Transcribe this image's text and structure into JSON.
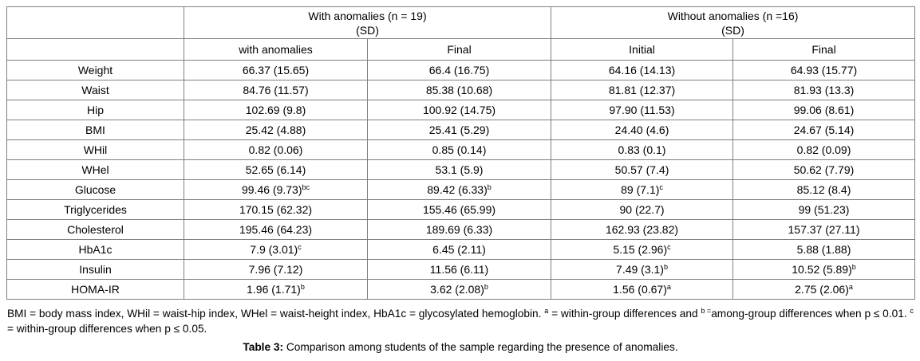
{
  "table": {
    "group_headers": [
      {
        "label": "With anomalies (n = 19)",
        "sub": "(SD)"
      },
      {
        "label": "Without anomalies (n =16)",
        "sub": "(SD)"
      }
    ],
    "sub_headers": [
      "with anomalies",
      "Final",
      "Initial",
      "Final"
    ],
    "rows": [
      {
        "label": "Weight",
        "cells": [
          {
            "v": "66.37 (15.65)",
            "s": ""
          },
          {
            "v": "66.4 (16.75)",
            "s": ""
          },
          {
            "v": "64.16 (14.13)",
            "s": ""
          },
          {
            "v": "64.93 (15.77)",
            "s": ""
          }
        ]
      },
      {
        "label": "Waist",
        "cells": [
          {
            "v": "84.76 (11.57)",
            "s": ""
          },
          {
            "v": "85.38 (10.68)",
            "s": ""
          },
          {
            "v": "81.81 (12.37)",
            "s": ""
          },
          {
            "v": "81.93 (13.3)",
            "s": ""
          }
        ]
      },
      {
        "label": "Hip",
        "cells": [
          {
            "v": "102.69 (9.8)",
            "s": ""
          },
          {
            "v": "100.92 (14.75)",
            "s": ""
          },
          {
            "v": "97.90 (11.53)",
            "s": ""
          },
          {
            "v": "99.06 (8.61)",
            "s": ""
          }
        ]
      },
      {
        "label": "BMI",
        "cells": [
          {
            "v": "25.42 (4.88)",
            "s": ""
          },
          {
            "v": "25.41 (5.29)",
            "s": ""
          },
          {
            "v": "24.40 (4.6)",
            "s": ""
          },
          {
            "v": "24.67 (5.14)",
            "s": ""
          }
        ]
      },
      {
        "label": "WHil",
        "cells": [
          {
            "v": "0.82 (0.06)",
            "s": ""
          },
          {
            "v": "0.85 (0.14)",
            "s": ""
          },
          {
            "v": "0.83 (0.1)",
            "s": ""
          },
          {
            "v": "0.82 (0.09)",
            "s": ""
          }
        ]
      },
      {
        "label": "WHel",
        "cells": [
          {
            "v": "52.65 (6.14)",
            "s": ""
          },
          {
            "v": "53.1 (5.9)",
            "s": ""
          },
          {
            "v": "50.57 (7.4)",
            "s": ""
          },
          {
            "v": "50.62 (7.79)",
            "s": ""
          }
        ]
      },
      {
        "label": "Glucose",
        "cells": [
          {
            "v": "99.46 (9.73)",
            "s": "bc"
          },
          {
            "v": "89.42 (6.33)",
            "s": "b"
          },
          {
            "v": "89 (7.1)",
            "s": "c"
          },
          {
            "v": "85.12 (8.4)",
            "s": ""
          }
        ]
      },
      {
        "label": "Triglycerides",
        "cells": [
          {
            "v": "170.15 (62.32)",
            "s": ""
          },
          {
            "v": "155.46 (65.99)",
            "s": ""
          },
          {
            "v": "90 (22.7)",
            "s": ""
          },
          {
            "v": "99 (51.23)",
            "s": ""
          }
        ]
      },
      {
        "label": "Cholesterol",
        "cells": [
          {
            "v": "195.46 (64.23)",
            "s": ""
          },
          {
            "v": "189.69 (6.33)",
            "s": ""
          },
          {
            "v": "162.93 (23.82)",
            "s": ""
          },
          {
            "v": "157.37 (27.11)",
            "s": ""
          }
        ]
      },
      {
        "label": "HbA1c",
        "cells": [
          {
            "v": "7.9 (3.01)",
            "s": "c"
          },
          {
            "v": "6.45 (2.11)",
            "s": ""
          },
          {
            "v": "5.15 (2.96)",
            "s": "c"
          },
          {
            "v": "5.88 (1.88)",
            "s": ""
          }
        ]
      },
      {
        "label": "Insulin",
        "cells": [
          {
            "v": "7.96 (7.12)",
            "s": ""
          },
          {
            "v": "11.56 (6.11)",
            "s": ""
          },
          {
            "v": "7.49 (3.1)",
            "s": "b"
          },
          {
            "v": "10.52 (5.89)",
            "s": "b"
          }
        ]
      },
      {
        "label": "HOMA-IR",
        "cells": [
          {
            "v": "1.96 (1.71)",
            "s": "b"
          },
          {
            "v": "3.62 (2.08)",
            "s": "b"
          },
          {
            "v": "1.56 (0.67)",
            "s": "a"
          },
          {
            "v": "2.75 (2.06)",
            "s": "a"
          }
        ]
      }
    ]
  },
  "footnote": {
    "segments": [
      {
        "t": "BMI = body mass index, WHil = waist-hip index, WHel = waist-height index, HbA1c = glycosylated hemoglobin. "
      },
      {
        "s": "a"
      },
      {
        "t": " = within-group differences and "
      },
      {
        "s": "b ="
      },
      {
        "t": "among-group differences when p ≤ 0.01. "
      },
      {
        "s": "c"
      },
      {
        "t": " = within-group differences when p ≤ 0.05."
      }
    ]
  },
  "caption": {
    "prefix": "Table 3:",
    "text": " Comparison among students of the sample regarding the presence of anomalies."
  }
}
